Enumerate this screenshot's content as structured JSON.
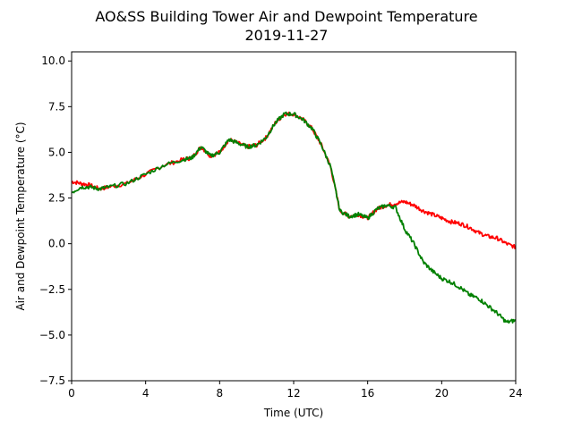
{
  "chart_data": {
    "type": "line",
    "title": "AO&SS Building Tower Air and Dewpoint Temperature",
    "subtitle": "2019-11-27",
    "xlabel": "Time (UTC)",
    "ylabel": "Air and Dewpoint Temperature (°C)",
    "xlim": [
      0,
      24
    ],
    "ylim": [
      -7.5,
      10.5
    ],
    "xticks": [
      0,
      4,
      8,
      12,
      16,
      20,
      24
    ],
    "yticks": [
      -7.5,
      -5.0,
      -2.5,
      0.0,
      2.5,
      5.0,
      7.5,
      10.0
    ],
    "xtick_labels": [
      "0",
      "4",
      "8",
      "12",
      "16",
      "20",
      "24"
    ],
    "ytick_labels": [
      "−7.5",
      "−5.0",
      "−2.5",
      "0.0",
      "2.5",
      "5.0",
      "7.5",
      "10.0"
    ],
    "grid": false,
    "series": [
      {
        "color": "#ff0000",
        "x": [
          0,
          0.5,
          1,
          1.5,
          2,
          3,
          4,
          5,
          6,
          6.5,
          7,
          7.5,
          8,
          8.5,
          9,
          9.5,
          10,
          10.5,
          11,
          11.5,
          12,
          12.5,
          13,
          13.5,
          14,
          14.5,
          15,
          15.5,
          16,
          16.5,
          17,
          17.5,
          18,
          18.5,
          19,
          19.5,
          20,
          20.5,
          21,
          21.5,
          22,
          22.5,
          23,
          23.5,
          24
        ],
        "y": [
          3.4,
          3.3,
          3.2,
          3.0,
          3.1,
          3.3,
          3.8,
          4.3,
          4.6,
          4.7,
          5.3,
          4.8,
          5.0,
          5.7,
          5.5,
          5.3,
          5.4,
          5.8,
          6.6,
          7.1,
          7.1,
          6.8,
          6.3,
          5.4,
          4.2,
          1.8,
          1.5,
          1.6,
          1.4,
          1.9,
          2.1,
          2.2,
          2.3,
          2.1,
          1.8,
          1.6,
          1.4,
          1.2,
          1.1,
          0.9,
          0.6,
          0.4,
          0.3,
          0.0,
          -0.2
        ]
      },
      {
        "color": "#008000",
        "x": [
          0,
          0.5,
          1,
          1.5,
          2,
          3,
          4,
          5,
          6,
          6.5,
          7,
          7.5,
          8,
          8.5,
          9,
          9.5,
          10,
          10.5,
          11,
          11.5,
          12,
          12.5,
          13,
          13.5,
          14,
          14.5,
          15,
          15.5,
          16,
          16.5,
          17,
          17.5,
          18,
          18.5,
          19,
          19.5,
          20,
          20.5,
          21,
          21.5,
          22,
          22.5,
          23,
          23.5,
          24
        ],
        "y": [
          2.8,
          3.1,
          3.1,
          3.0,
          3.1,
          3.3,
          3.8,
          4.3,
          4.6,
          4.7,
          5.3,
          4.8,
          5.0,
          5.7,
          5.5,
          5.3,
          5.4,
          5.8,
          6.6,
          7.1,
          7.1,
          6.8,
          6.3,
          5.4,
          4.2,
          1.8,
          1.5,
          1.6,
          1.4,
          1.9,
          2.1,
          2.0,
          0.8,
          0.0,
          -1.0,
          -1.5,
          -1.9,
          -2.1,
          -2.4,
          -2.8,
          -3.0,
          -3.4,
          -3.8,
          -4.3,
          -4.2
        ]
      }
    ]
  }
}
